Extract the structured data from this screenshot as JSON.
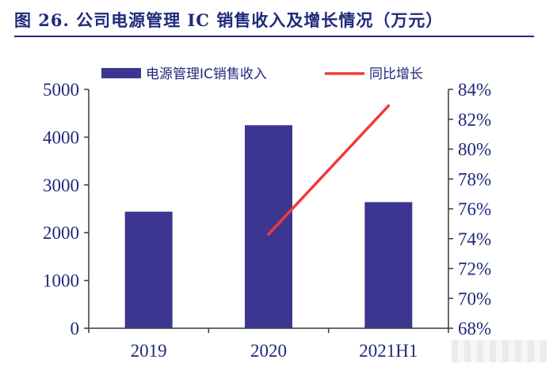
{
  "figure": {
    "title": "图 26. 公司电源管理 IC 销售收入及增长情况（万元）"
  },
  "chart_data": {
    "type": "bar",
    "categories": [
      "2019",
      "2020",
      "2021H1"
    ],
    "series": [
      {
        "name": "电源管理IC销售收入",
        "kind": "bar",
        "axis": "left",
        "color": "#3d3690",
        "values": [
          2440,
          4250,
          2640
        ]
      },
      {
        "name": "同比增长",
        "kind": "line",
        "axis": "right",
        "color": "#ef3b3b",
        "values": [
          null,
          0.743,
          0.829
        ]
      }
    ],
    "y_left": {
      "min": 0,
      "max": 5000,
      "ticks": [
        0,
        1000,
        2000,
        3000,
        4000,
        5000
      ],
      "tick_labels": [
        "0",
        "1000",
        "2000",
        "3000",
        "4000",
        "5000"
      ]
    },
    "y_right": {
      "min": 0.68,
      "max": 0.84,
      "ticks": [
        0.68,
        0.7,
        0.72,
        0.74,
        0.76,
        0.78,
        0.8,
        0.82,
        0.84
      ],
      "tick_labels": [
        "68%",
        "70%",
        "72%",
        "74%",
        "76%",
        "78%",
        "80%",
        "82%",
        "84%"
      ]
    },
    "legend_position": "top",
    "grid": false
  }
}
